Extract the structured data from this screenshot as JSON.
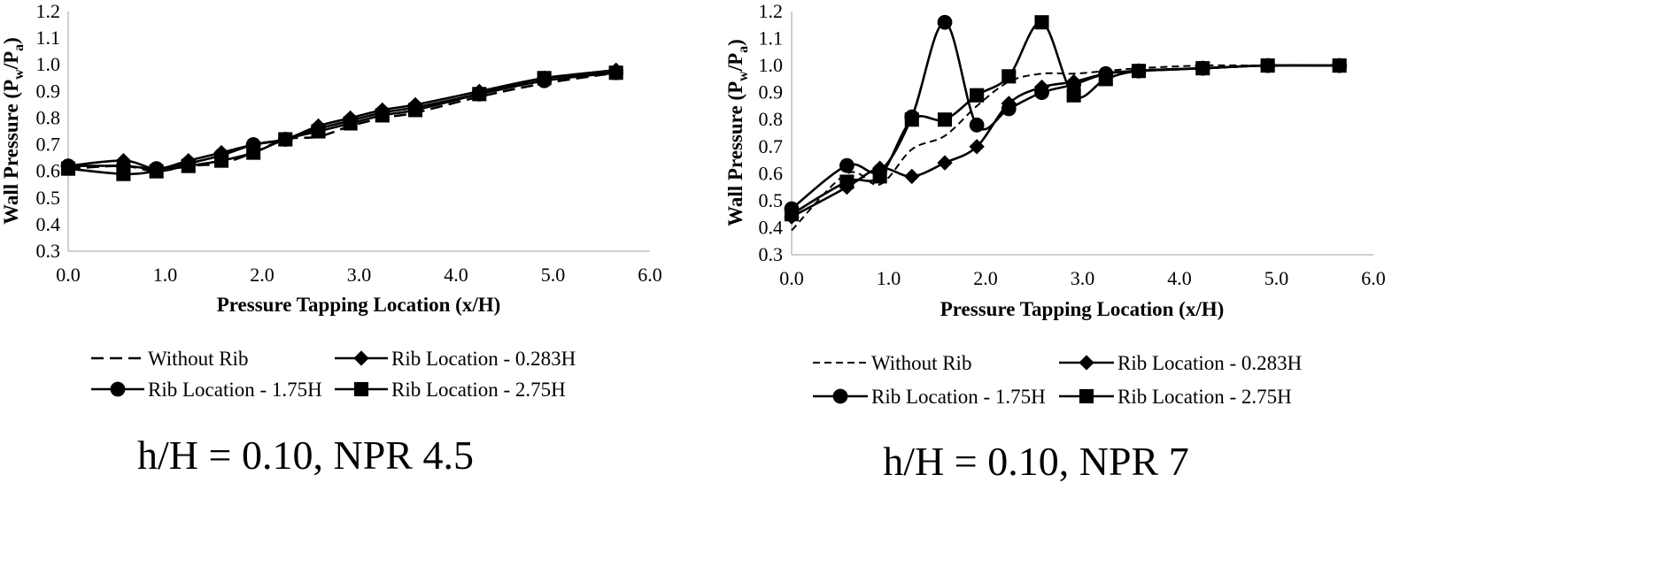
{
  "chart_data": [
    {
      "type": "line",
      "caption": "h/H = 0.10, NPR 4.5",
      "xlabel": "Pressure Tapping Location (x/H)",
      "ylabel": {
        "main": "Wall Pressure (P",
        "sub1": "w",
        "mid": "/P",
        "sub2": "a",
        "end": ")"
      },
      "xlim": [
        0,
        6
      ],
      "ylim": [
        0.3,
        1.2
      ],
      "xticks": [
        "0.0",
        "1.0",
        "2.0",
        "3.0",
        "4.0",
        "5.0",
        "6.0"
      ],
      "yticks": [
        "0.3",
        "0.4",
        "0.5",
        "0.6",
        "0.7",
        "0.8",
        "0.9",
        "1.0",
        "1.1",
        "1.2"
      ],
      "series": [
        {
          "name": "Without Rib",
          "marker": "none",
          "style": "dashed",
          "x": [
            0,
            0.57,
            0.91,
            1.24,
            1.58,
            1.91,
            2.24,
            2.58,
            2.91,
            3.24,
            3.58,
            4.24,
            4.91,
            5.65
          ],
          "y": [
            0.61,
            0.62,
            0.6,
            0.62,
            0.63,
            0.67,
            0.72,
            0.73,
            0.77,
            0.8,
            0.82,
            0.88,
            0.93,
            0.97
          ]
        },
        {
          "name": "Rib Location - 0.283H",
          "marker": "diamond",
          "style": "solid",
          "x": [
            0,
            0.57,
            0.91,
            1.24,
            1.58,
            1.91,
            2.24,
            2.58,
            2.91,
            3.24,
            3.58,
            4.24,
            4.91,
            5.65
          ],
          "y": [
            0.62,
            0.64,
            0.61,
            0.64,
            0.67,
            0.7,
            0.72,
            0.77,
            0.8,
            0.83,
            0.85,
            0.9,
            0.95,
            0.98
          ]
        },
        {
          "name": "Rib Location - 1.75H",
          "marker": "circle",
          "style": "solid",
          "x": [
            0,
            0.57,
            0.91,
            1.24,
            1.58,
            1.91,
            2.24,
            2.58,
            2.91,
            3.24,
            3.58,
            4.24,
            4.91,
            5.65
          ],
          "y": [
            0.62,
            0.62,
            0.61,
            0.63,
            0.66,
            0.7,
            0.72,
            0.76,
            0.79,
            0.82,
            0.84,
            0.89,
            0.94,
            0.97
          ]
        },
        {
          "name": "Rib Location - 2.75H",
          "marker": "square",
          "style": "solid",
          "x": [
            0,
            0.57,
            0.91,
            1.24,
            1.58,
            1.91,
            2.24,
            2.58,
            2.91,
            3.24,
            3.58,
            4.24,
            4.91,
            5.65
          ],
          "y": [
            0.61,
            0.59,
            0.6,
            0.62,
            0.64,
            0.67,
            0.72,
            0.75,
            0.78,
            0.81,
            0.83,
            0.89,
            0.95,
            0.97
          ]
        }
      ]
    },
    {
      "type": "line",
      "caption": "h/H = 0.10, NPR 7",
      "xlabel": "Pressure Tapping Location (x/H)",
      "ylabel": {
        "main": "Wall Pressure (P",
        "sub1": "w",
        "mid": "/P",
        "sub2": "a",
        "end": ")"
      },
      "xlim": [
        0,
        6
      ],
      "ylim": [
        0.3,
        1.2
      ],
      "xticks": [
        "0.0",
        "1.0",
        "2.0",
        "3.0",
        "4.0",
        "5.0",
        "6.0"
      ],
      "yticks": [
        "0.3",
        "0.4",
        "0.5",
        "0.6",
        "0.7",
        "0.8",
        "0.9",
        "1.0",
        "1.1",
        "1.2"
      ],
      "series": [
        {
          "name": "Without Rib",
          "marker": "none",
          "style": "dashed",
          "x": [
            0,
            0.57,
            0.91,
            1.24,
            1.58,
            1.91,
            2.24,
            2.58,
            2.91,
            3.24,
            3.58,
            4.24,
            4.91,
            5.65
          ],
          "y": [
            0.39,
            0.6,
            0.56,
            0.69,
            0.74,
            0.85,
            0.94,
            0.97,
            0.97,
            0.98,
            0.99,
            1.0,
            1.0,
            1.0
          ]
        },
        {
          "name": "Rib Location - 0.283H",
          "marker": "diamond",
          "style": "solid",
          "x": [
            0,
            0.57,
            0.91,
            1.24,
            1.58,
            1.91,
            2.24,
            2.58,
            2.91,
            3.24,
            3.58,
            4.24,
            4.91,
            5.65
          ],
          "y": [
            0.44,
            0.55,
            0.62,
            0.59,
            0.64,
            0.7,
            0.86,
            0.92,
            0.94,
            0.97,
            0.98,
            0.99,
            1.0,
            1.0
          ]
        },
        {
          "name": "Rib Location - 1.75H",
          "marker": "circle",
          "style": "solid",
          "x": [
            0,
            0.57,
            0.91,
            1.24,
            1.58,
            1.91,
            2.24,
            2.58,
            2.91,
            3.24,
            3.58,
            4.24,
            4.91,
            5.65
          ],
          "y": [
            0.47,
            0.63,
            0.61,
            0.81,
            1.16,
            0.78,
            0.84,
            0.9,
            0.93,
            0.97,
            0.98,
            0.99,
            1.0,
            1.0
          ]
        },
        {
          "name": "Rib Location - 2.75H",
          "marker": "square",
          "style": "solid",
          "x": [
            0,
            0.57,
            0.91,
            1.24,
            1.58,
            1.91,
            2.24,
            2.58,
            2.91,
            3.24,
            3.58,
            4.24,
            4.91,
            5.65
          ],
          "y": [
            0.45,
            0.57,
            0.59,
            0.8,
            0.8,
            0.89,
            0.96,
            1.16,
            0.89,
            0.95,
            0.98,
            0.99,
            1.0,
            1.0
          ]
        }
      ]
    }
  ]
}
